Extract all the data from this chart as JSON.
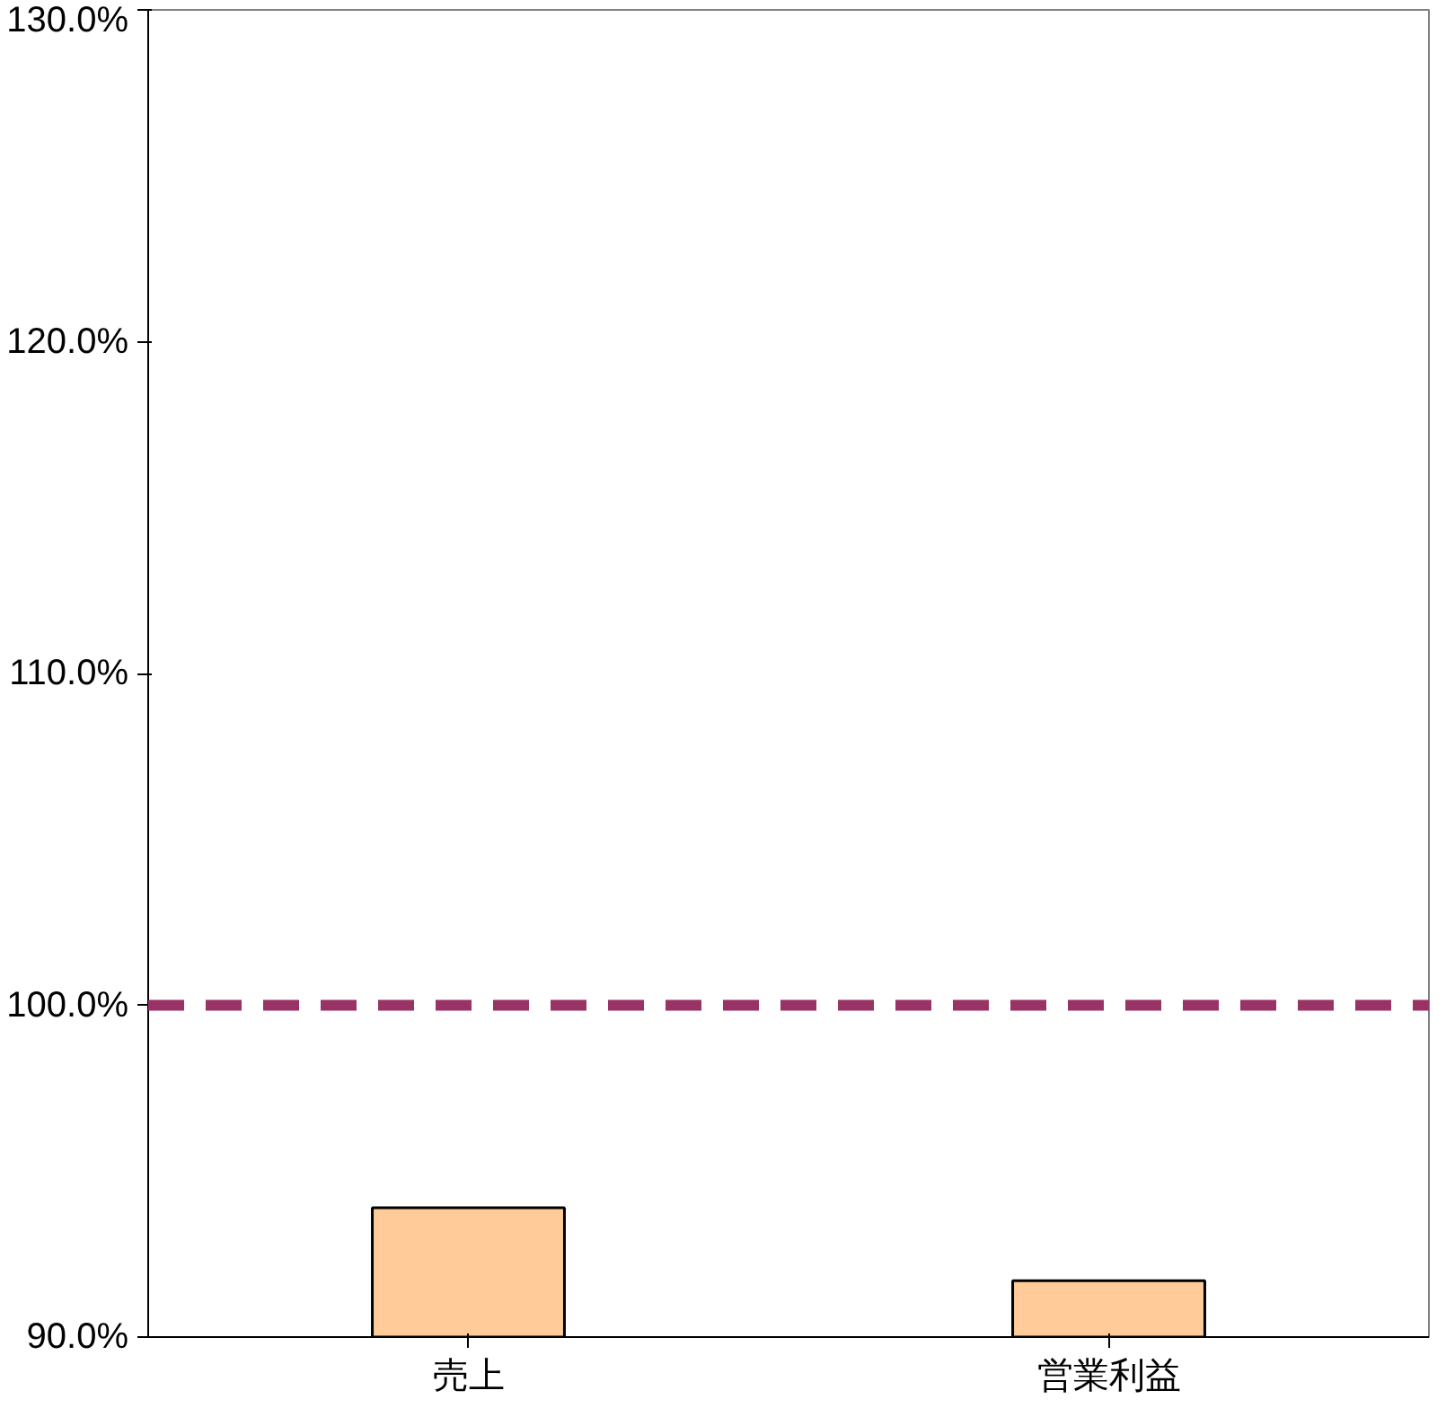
{
  "chart_data": {
    "type": "bar",
    "categories": [
      "売上",
      "営業利益"
    ],
    "values": [
      93.9,
      91.7
    ],
    "color": "#ffcc99",
    "ylim": [
      90,
      130
    ],
    "yticks": [
      {
        "value": 90,
        "label": "90.0%"
      },
      {
        "value": 100,
        "label": "100.0%"
      },
      {
        "value": 110,
        "label": "110.0%"
      },
      {
        "value": 120,
        "label": "120.0%"
      },
      {
        "value": 130,
        "label": "130.0%"
      }
    ],
    "ref_lines": [
      {
        "axis": "y",
        "value": 100,
        "color": "#993366",
        "line_style": "dashed"
      }
    ],
    "grid": false
  }
}
